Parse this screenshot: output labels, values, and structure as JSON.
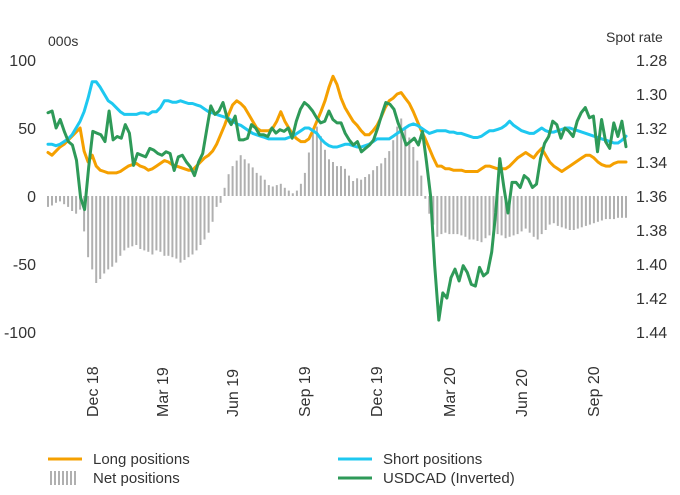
{
  "chart_data": {
    "type": "line",
    "title": "",
    "left_axis": {
      "unit_label": "000s",
      "ylim": [
        -100,
        100
      ],
      "ticks": [
        "100",
        "50",
        "0",
        "-50",
        "-100"
      ]
    },
    "right_axis": {
      "unit_label": "Spot rate",
      "ylim": [
        1.28,
        1.44
      ],
      "inverted": true,
      "ticks": [
        "1.28",
        "1.30",
        "1.32",
        "1.34",
        "1.36",
        "1.38",
        "1.40",
        "1.42",
        "1.44"
      ]
    },
    "x_ticks": [
      "Dec 18",
      "Mar 19",
      "Jun 19",
      "Sep 19",
      "Dec 19",
      "Mar 20",
      "Jun 20",
      "Sep 20"
    ],
    "grid": false,
    "legend_placement": "bottom",
    "series": [
      {
        "name": "Long positions",
        "axis": "left",
        "kind": "line",
        "color": "#f5a000",
        "values": [
          32,
          30,
          33,
          36,
          38,
          41,
          44,
          47,
          50,
          33,
          25,
          30,
          22,
          19,
          18,
          17,
          17,
          17,
          18,
          20,
          22,
          23,
          24,
          22,
          21,
          19,
          20,
          22,
          24,
          26,
          25,
          23,
          22,
          21,
          20,
          19,
          19,
          22,
          25,
          28,
          30,
          33,
          38,
          45,
          52,
          60,
          67,
          70,
          68,
          65,
          60,
          55,
          50,
          48,
          48,
          48,
          50,
          55,
          62,
          55,
          50,
          45,
          42,
          40,
          40,
          42,
          48,
          55,
          62,
          70,
          80,
          88,
          82,
          72,
          65,
          60,
          55,
          52,
          48,
          45,
          45,
          48,
          52,
          58,
          65,
          70,
          72,
          75,
          76,
          72,
          68,
          62,
          55,
          48,
          42,
          35,
          28,
          22,
          22,
          20,
          20,
          19,
          19,
          19,
          18,
          18,
          18,
          18,
          20,
          22,
          22,
          21,
          20,
          20,
          20,
          22,
          25,
          28,
          30,
          32,
          30,
          28,
          32,
          35,
          30,
          25,
          22,
          20,
          18,
          20,
          22,
          24,
          26,
          28,
          30,
          30,
          28,
          25,
          23,
          22,
          22,
          24,
          25,
          25,
          25
        ]
      },
      {
        "name": "Short positions",
        "axis": "left",
        "kind": "line",
        "color": "#1ec8f0",
        "values": [
          38,
          38,
          37,
          38,
          40,
          42,
          45,
          50,
          55,
          62,
          72,
          84,
          84,
          80,
          75,
          70,
          68,
          65,
          62,
          60,
          60,
          60,
          60,
          61,
          61,
          60,
          62,
          62,
          65,
          70,
          70,
          69,
          69,
          70,
          69,
          68,
          68,
          67,
          66,
          64,
          62,
          61,
          60,
          59,
          58,
          57,
          55,
          53,
          52,
          50,
          48,
          46,
          45,
          44,
          43,
          42,
          42,
          42,
          42,
          42,
          43,
          44,
          46,
          48,
          50,
          50,
          48,
          46,
          42,
          39,
          37,
          36,
          36,
          37,
          38,
          38,
          37,
          36,
          36,
          37,
          38,
          40,
          42,
          42,
          42,
          42,
          44,
          46,
          48,
          50,
          52,
          53,
          52,
          50,
          48,
          46,
          47,
          48,
          48,
          48,
          47,
          47,
          46,
          46,
          45,
          44,
          43,
          43,
          44,
          46,
          48,
          48,
          49,
          50,
          52,
          55,
          52,
          50,
          48,
          47,
          46,
          46,
          48,
          50,
          48,
          47,
          47,
          48,
          49,
          50,
          50,
          49,
          48,
          47,
          46,
          45,
          44,
          43,
          42,
          41,
          40,
          39,
          39,
          41,
          44
        ]
      },
      {
        "name": "Net positions",
        "axis": "left",
        "kind": "bars",
        "color": "#b0b0b0",
        "values": [
          -8,
          -7,
          -5,
          -4,
          -6,
          -8,
          -11,
          -13,
          -10,
          -26,
          -45,
          -54,
          -64,
          -61,
          -57,
          -54,
          -52,
          -49,
          -44,
          -40,
          -38,
          -37,
          -36,
          -39,
          -40,
          -41,
          -43,
          -40,
          -41,
          -44,
          -44,
          -45,
          -46,
          -49,
          -47,
          -45,
          -43,
          -40,
          -36,
          -32,
          -27,
          -19,
          -8,
          -5,
          6,
          16,
          22,
          26,
          30,
          27,
          24,
          21,
          17,
          15,
          12,
          8,
          7,
          8,
          9,
          6,
          4,
          2,
          4,
          9,
          17,
          32,
          48,
          51,
          44,
          34,
          27,
          25,
          22,
          22,
          20,
          15,
          11,
          13,
          12,
          14,
          16,
          19,
          22,
          24,
          28,
          33,
          41,
          51,
          57,
          51,
          43,
          36,
          26,
          15,
          -2,
          -13,
          -21,
          -30,
          -28,
          -27,
          -28,
          -28,
          -28,
          -29,
          -30,
          -32,
          -32,
          -33,
          -34,
          -31,
          -29,
          -28,
          -28,
          -29,
          -31,
          -30,
          -29,
          -28,
          -26,
          -24,
          -27,
          -30,
          -32,
          -28,
          -25,
          -21,
          -20,
          -22,
          -23,
          -24,
          -25,
          -25,
          -24,
          -23,
          -22,
          -21,
          -20,
          -19,
          -18,
          -17,
          -17,
          -17,
          -16,
          -16,
          -16
        ]
      },
      {
        "name": "USDCAD (Inverted)",
        "axis": "right",
        "kind": "line",
        "color": "#2e9a58",
        "values": [
          1.311,
          1.31,
          1.32,
          1.315,
          1.322,
          1.328,
          1.33,
          1.339,
          1.361,
          1.368,
          1.343,
          1.322,
          1.323,
          1.324,
          1.328,
          1.31,
          1.327,
          1.325,
          1.326,
          1.318,
          1.323,
          1.342,
          1.335,
          1.336,
          1.337,
          1.332,
          1.333,
          1.335,
          1.336,
          1.334,
          1.335,
          1.345,
          1.337,
          1.336,
          1.34,
          1.343,
          1.348,
          1.34,
          1.335,
          1.321,
          1.307,
          1.312,
          1.31,
          1.305,
          1.314,
          1.318,
          1.313,
          1.327,
          1.327,
          1.326,
          1.318,
          1.32,
          1.324,
          1.324,
          1.325,
          1.32,
          1.323,
          1.321,
          1.322,
          1.32,
          1.326,
          1.316,
          1.309,
          1.305,
          1.307,
          1.31,
          1.314,
          1.317,
          1.316,
          1.31,
          1.315,
          1.317,
          1.317,
          1.323,
          1.327,
          1.33,
          1.328,
          1.334,
          1.332,
          1.33,
          1.327,
          1.32,
          1.312,
          1.305,
          1.306,
          1.309,
          1.317,
          1.323,
          1.33,
          1.328,
          1.326,
          1.33,
          1.322,
          1.34,
          1.36,
          1.401,
          1.433,
          1.417,
          1.42,
          1.408,
          1.403,
          1.41,
          1.401,
          1.405,
          1.412,
          1.413,
          1.402,
          1.407,
          1.405,
          1.393,
          1.37,
          1.338,
          1.355,
          1.37,
          1.352,
          1.352,
          1.355,
          1.348,
          1.35,
          1.355,
          1.353,
          1.338,
          1.329,
          1.325,
          1.316,
          1.318,
          1.326,
          1.32,
          1.322,
          1.325,
          1.316,
          1.311,
          1.308,
          1.314,
          1.313,
          1.334,
          1.315,
          1.328,
          1.332,
          1.317,
          1.325,
          1.316,
          1.331
        ]
      }
    ]
  },
  "legend": {
    "items": [
      {
        "label": "Long positions",
        "color": "#f5a000",
        "kind": "line"
      },
      {
        "label": "Short positions",
        "color": "#1ec8f0",
        "kind": "line"
      },
      {
        "label": "Net positions",
        "color": "#b0b0b0",
        "kind": "bars"
      },
      {
        "label": "USDCAD (Inverted)",
        "color": "#2e9a58",
        "kind": "line"
      }
    ]
  }
}
